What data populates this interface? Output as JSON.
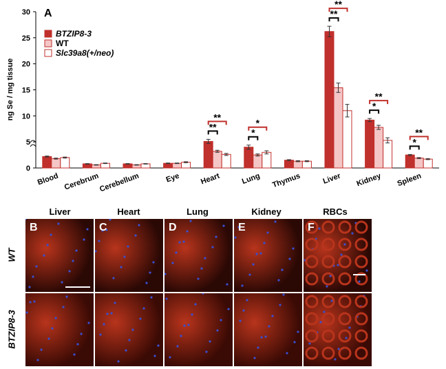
{
  "chart_data": {
    "type": "bar",
    "panel_label": "A",
    "ylabel": "ng Se / mg tissue",
    "ylim": [
      0,
      30
    ],
    "yticks": [
      "0",
      "5",
      "10",
      "15",
      "20",
      "25",
      "30"
    ],
    "categories": [
      "Blood",
      "Cerebrum",
      "Cerebellum",
      "Eye",
      "Heart",
      "Lung",
      "Thymus",
      "Liver",
      "Kidney",
      "Spleen"
    ],
    "series": [
      {
        "name": "BTZIP8-3",
        "color": "#c0302c",
        "values": [
          2.2,
          0.8,
          0.8,
          0.9,
          5.1,
          4.0,
          1.5,
          26.2,
          9.2,
          2.5
        ],
        "errors": [
          0.1,
          0.05,
          0.05,
          0.05,
          0.4,
          0.4,
          0.1,
          1.0,
          0.3,
          0.1
        ]
      },
      {
        "name": "WT",
        "color": "#f5c6c6",
        "values": [
          1.8,
          0.6,
          0.6,
          0.9,
          3.2,
          2.5,
          1.3,
          15.4,
          7.8,
          1.9
        ],
        "errors": [
          0.1,
          0.05,
          0.05,
          0.05,
          0.2,
          0.2,
          0.1,
          0.9,
          0.4,
          0.1
        ]
      },
      {
        "name": "Slc39a8(+/neo)",
        "color": "#ffffff",
        "values": [
          2.0,
          0.9,
          0.8,
          1.1,
          2.6,
          3.0,
          1.3,
          11.0,
          5.3,
          1.7
        ],
        "errors": [
          0.1,
          0.05,
          0.05,
          0.1,
          0.2,
          0.3,
          0.1,
          1.2,
          0.5,
          0.1
        ]
      }
    ],
    "significance": [
      {
        "category": "Heart",
        "black": "**",
        "red": "**"
      },
      {
        "category": "Lung",
        "black": "*",
        "red": "*"
      },
      {
        "category": "Liver",
        "black": "**",
        "red": "**"
      },
      {
        "category": "Kidney",
        "black": "*",
        "red": "**"
      },
      {
        "category": "Spleen",
        "black": "*",
        "red": "**"
      }
    ],
    "legend_placement": "top-left"
  },
  "micrographs": {
    "columns": [
      "Liver",
      "Heart",
      "Lung",
      "Kidney",
      "RBCs"
    ],
    "panel_letters": [
      "B",
      "C",
      "D",
      "E",
      "F"
    ],
    "rows": [
      "WT",
      "BTZIP8-3"
    ],
    "colors": {
      "tissue": "#b8341c",
      "dark": "#2a0804",
      "nuclei": "#3a4fd0"
    }
  }
}
